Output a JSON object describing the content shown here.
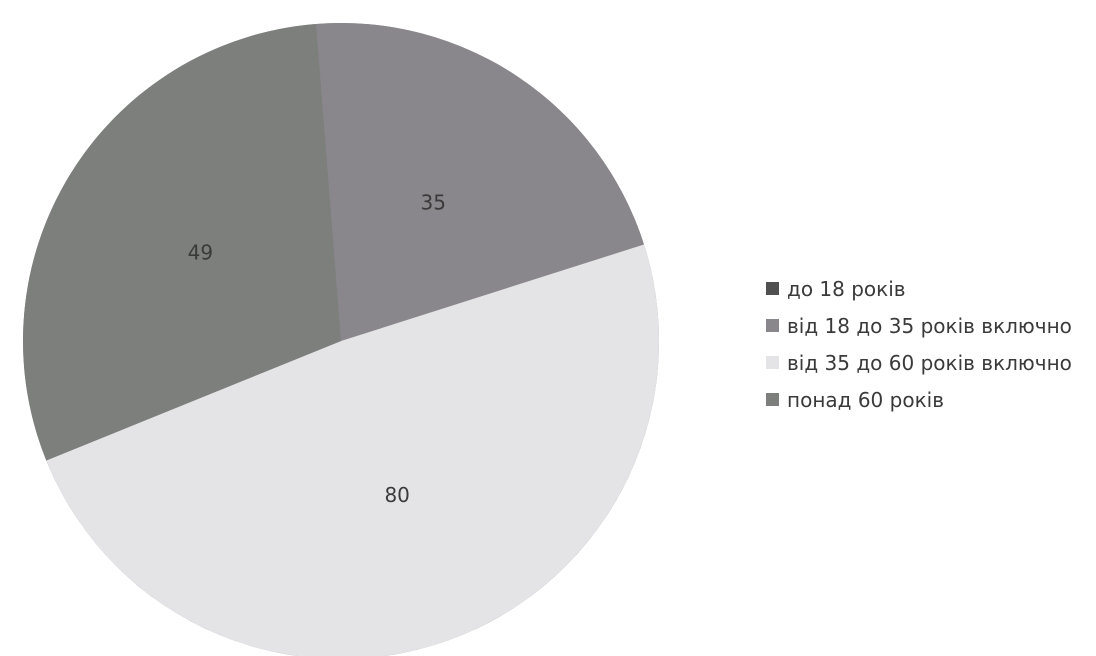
{
  "chart_data": {
    "type": "pie",
    "categories": [
      "до 18 років",
      "від 18 до 35 років включно",
      "від 35 до 60 років включно",
      "понад 60 років"
    ],
    "values": [
      0,
      35,
      80,
      49
    ],
    "data_labels": [
      "",
      "35",
      "80",
      "49"
    ],
    "colors": [
      "#505050",
      "#8a878c",
      "#e4e3e6",
      "#7c7f7c"
    ],
    "legend_position": "right",
    "title": ""
  }
}
